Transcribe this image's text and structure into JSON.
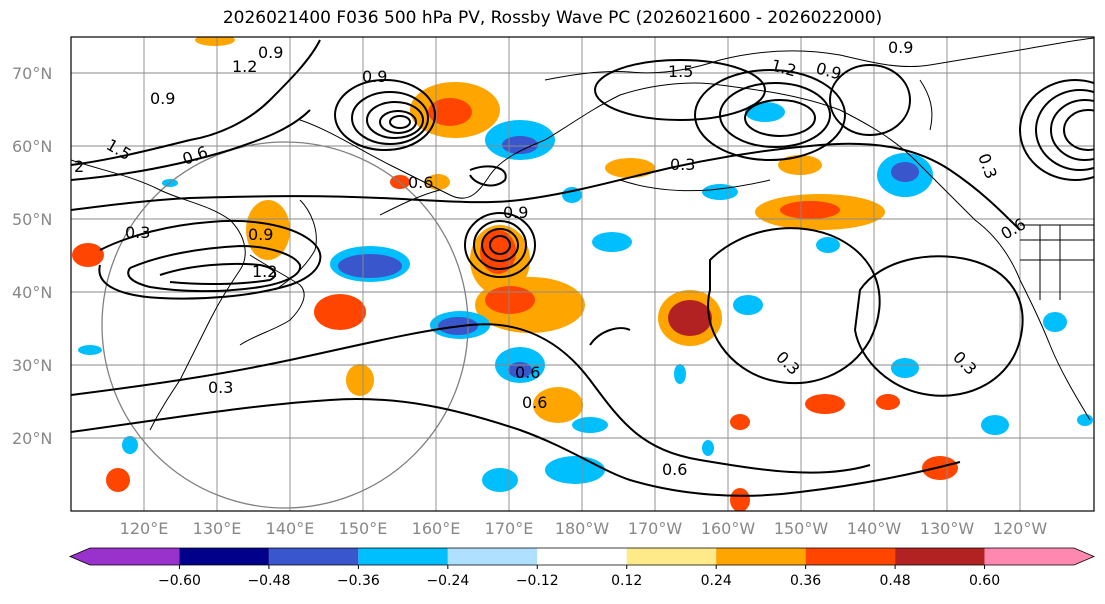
{
  "title": "2026021400 F036 500 hPa PV, Rossby Wave PC (2026021600 - 2026022000)",
  "lat_labels": [
    "70°N",
    "60°N",
    "50°N",
    "40°N",
    "30°N",
    "20°N"
  ],
  "lon_labels": [
    "120°E",
    "130°E",
    "140°E",
    "150°E",
    "160°E",
    "170°E",
    "180°W",
    "170°W",
    "160°W",
    "150°W",
    "140°W",
    "130°W",
    "120°W"
  ],
  "contour_labels": [
    "0.9",
    "0.9",
    "1.5",
    "1.2",
    "0.9",
    "0.9",
    "1.5",
    "0.6",
    "2",
    "0.9",
    "1.2",
    "0.3",
    "0.3",
    "0.6",
    "0.6",
    "0.3",
    "0.3",
    "0.3",
    "0.6",
    "0.6",
    "0.3",
    "0.9",
    "0.9",
    "1.2",
    "0.6"
  ],
  "colorbar": {
    "ticks": [
      "−0.60",
      "−0.48",
      "−0.36",
      "−0.24",
      "−0.12",
      "0.12",
      "0.24",
      "0.36",
      "0.48",
      "0.60"
    ],
    "colors": [
      "#9932cc",
      "#00008b",
      "#3a56cc",
      "#00bfff",
      "#b0e0ff",
      "#ffffff",
      "#ffea8a",
      "#ffa500",
      "#ff4500",
      "#b22222",
      "#ff88b0"
    ]
  },
  "shading": {
    "positive_color": "#ffa500",
    "strong_positive_color": "#ff4500",
    "very_strong_positive_color": "#b22222",
    "negative_color": "#00bfff",
    "strong_negative_color": "#3a56cc"
  }
}
